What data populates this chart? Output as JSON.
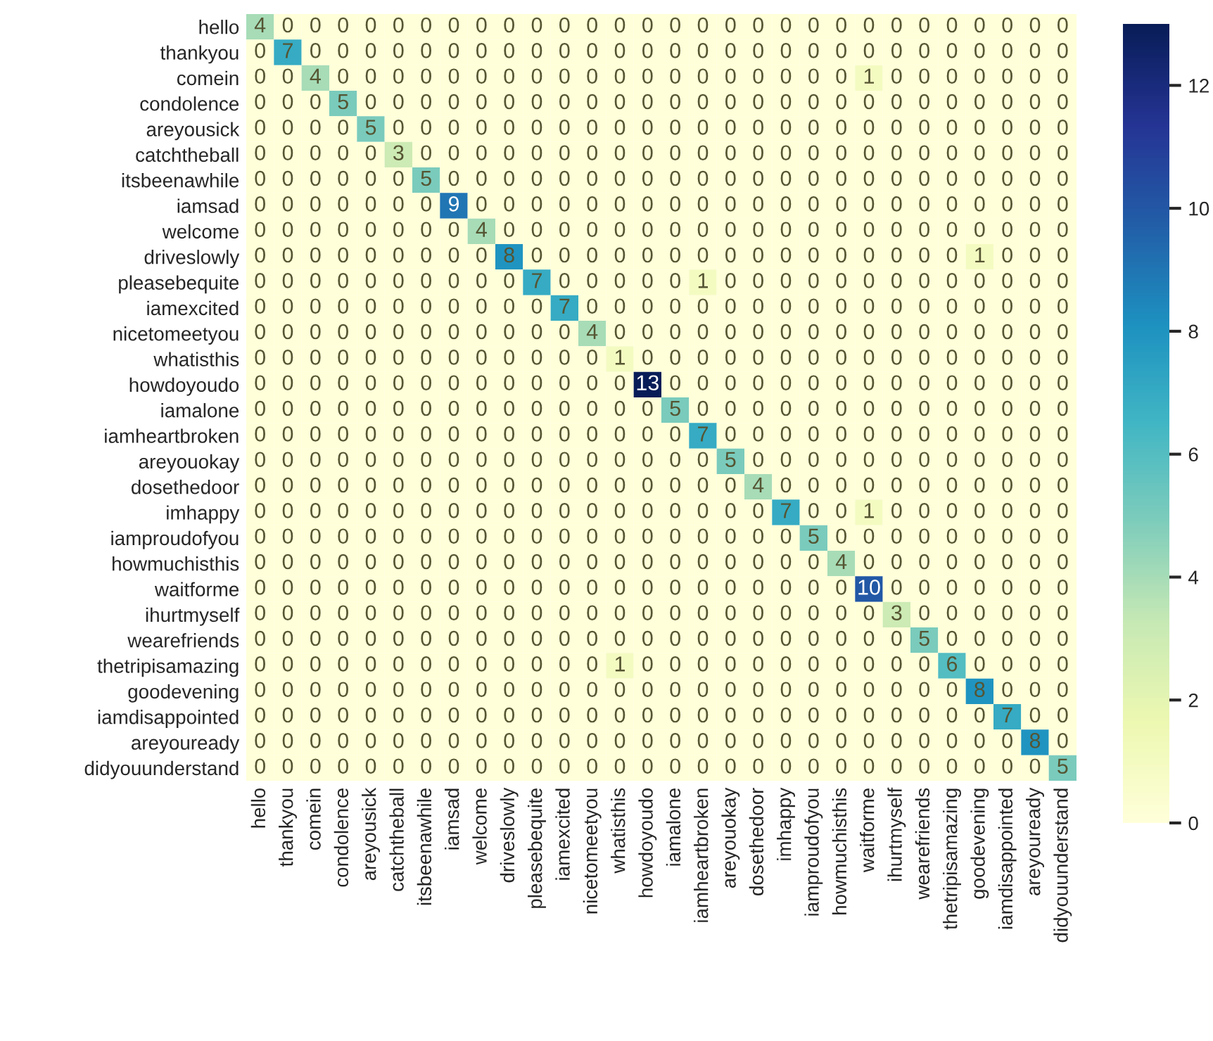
{
  "chart_data": {
    "type": "heatmap",
    "categories": [
      "hello",
      "thankyou",
      "comein",
      "condolence",
      "areyousick",
      "catchtheball",
      "itsbeenawhile",
      "iamsad",
      "welcome",
      "driveslowly",
      "pleasebequite",
      "iamexcited",
      "nicetomeetyou",
      "whatisthis",
      "howdoyoudo",
      "iamalone",
      "iamheartbroken",
      "areyouokay",
      "dosethedoor",
      "imhappy",
      "iamproudofyou",
      "howmuchisthis",
      "waitforme",
      "ihurtmyself",
      "wearefriends",
      "thetripisamazing",
      "goodevening",
      "iamdisappointed",
      "areyouready",
      "didyouunderstand"
    ],
    "y_categories": [
      "hello",
      "thankyou",
      "comein",
      "condolence",
      "areyousick",
      "catchtheball",
      "itsbeenawhile",
      "iamsad",
      "welcome",
      "driveslowly",
      "pleasebequite",
      "iamexcited",
      "nicetomeetyou",
      "whatisthis",
      "howdoyoudo",
      "iamalone",
      "iamheartbroken",
      "areyouokay",
      "dosethedoor",
      "imhappy",
      "iamproudofyou",
      "howmuchisthis",
      "waitforme",
      "ihurtmyself",
      "wearefriends",
      "thetripisamazing",
      "goodevening",
      "iamdisappointed",
      "areyouready",
      "didyouunderstand"
    ],
    "cells": [
      [
        4,
        0,
        0,
        0,
        0,
        0,
        0,
        0,
        0,
        0,
        0,
        0,
        0,
        0,
        0,
        0,
        0,
        0,
        0,
        0,
        0,
        0,
        0,
        0,
        0,
        0,
        0,
        0,
        0,
        0
      ],
      [
        0,
        7,
        0,
        0,
        0,
        0,
        0,
        0,
        0,
        0,
        0,
        0,
        0,
        0,
        0,
        0,
        0,
        0,
        0,
        0,
        0,
        0,
        0,
        0,
        0,
        0,
        0,
        0,
        0,
        0
      ],
      [
        0,
        0,
        4,
        0,
        0,
        0,
        0,
        0,
        0,
        0,
        0,
        0,
        0,
        0,
        0,
        0,
        0,
        0,
        0,
        0,
        0,
        0,
        1,
        0,
        0,
        0,
        0,
        0,
        0,
        0
      ],
      [
        0,
        0,
        0,
        5,
        0,
        0,
        0,
        0,
        0,
        0,
        0,
        0,
        0,
        0,
        0,
        0,
        0,
        0,
        0,
        0,
        0,
        0,
        0,
        0,
        0,
        0,
        0,
        0,
        0,
        0
      ],
      [
        0,
        0,
        0,
        0,
        5,
        0,
        0,
        0,
        0,
        0,
        0,
        0,
        0,
        0,
        0,
        0,
        0,
        0,
        0,
        0,
        0,
        0,
        0,
        0,
        0,
        0,
        0,
        0,
        0,
        0
      ],
      [
        0,
        0,
        0,
        0,
        0,
        3,
        0,
        0,
        0,
        0,
        0,
        0,
        0,
        0,
        0,
        0,
        0,
        0,
        0,
        0,
        0,
        0,
        0,
        0,
        0,
        0,
        0,
        0,
        0,
        0
      ],
      [
        0,
        0,
        0,
        0,
        0,
        0,
        5,
        0,
        0,
        0,
        0,
        0,
        0,
        0,
        0,
        0,
        0,
        0,
        0,
        0,
        0,
        0,
        0,
        0,
        0,
        0,
        0,
        0,
        0,
        0
      ],
      [
        0,
        0,
        0,
        0,
        0,
        0,
        0,
        9,
        0,
        0,
        0,
        0,
        0,
        0,
        0,
        0,
        0,
        0,
        0,
        0,
        0,
        0,
        0,
        0,
        0,
        0,
        0,
        0,
        0,
        0
      ],
      [
        0,
        0,
        0,
        0,
        0,
        0,
        0,
        0,
        4,
        0,
        0,
        0,
        0,
        0,
        0,
        0,
        0,
        0,
        0,
        0,
        0,
        0,
        0,
        0,
        0,
        0,
        0,
        0,
        0,
        0
      ],
      [
        0,
        0,
        0,
        0,
        0,
        0,
        0,
        0,
        0,
        8,
        0,
        0,
        0,
        0,
        0,
        0,
        0,
        0,
        0,
        0,
        0,
        0,
        0,
        0,
        0,
        0,
        1,
        0,
        0,
        0
      ],
      [
        0,
        0,
        0,
        0,
        0,
        0,
        0,
        0,
        0,
        0,
        7,
        0,
        0,
        0,
        0,
        0,
        1,
        0,
        0,
        0,
        0,
        0,
        0,
        0,
        0,
        0,
        0,
        0,
        0,
        0
      ],
      [
        0,
        0,
        0,
        0,
        0,
        0,
        0,
        0,
        0,
        0,
        0,
        7,
        0,
        0,
        0,
        0,
        0,
        0,
        0,
        0,
        0,
        0,
        0,
        0,
        0,
        0,
        0,
        0,
        0,
        0
      ],
      [
        0,
        0,
        0,
        0,
        0,
        0,
        0,
        0,
        0,
        0,
        0,
        0,
        4,
        0,
        0,
        0,
        0,
        0,
        0,
        0,
        0,
        0,
        0,
        0,
        0,
        0,
        0,
        0,
        0,
        0
      ],
      [
        0,
        0,
        0,
        0,
        0,
        0,
        0,
        0,
        0,
        0,
        0,
        0,
        0,
        1,
        0,
        0,
        0,
        0,
        0,
        0,
        0,
        0,
        0,
        0,
        0,
        0,
        0,
        0,
        0,
        0
      ],
      [
        0,
        0,
        0,
        0,
        0,
        0,
        0,
        0,
        0,
        0,
        0,
        0,
        0,
        0,
        13,
        0,
        0,
        0,
        0,
        0,
        0,
        0,
        0,
        0,
        0,
        0,
        0,
        0,
        0,
        0
      ],
      [
        0,
        0,
        0,
        0,
        0,
        0,
        0,
        0,
        0,
        0,
        0,
        0,
        0,
        0,
        0,
        5,
        0,
        0,
        0,
        0,
        0,
        0,
        0,
        0,
        0,
        0,
        0,
        0,
        0,
        0
      ],
      [
        0,
        0,
        0,
        0,
        0,
        0,
        0,
        0,
        0,
        0,
        0,
        0,
        0,
        0,
        0,
        0,
        7,
        0,
        0,
        0,
        0,
        0,
        0,
        0,
        0,
        0,
        0,
        0,
        0,
        0
      ],
      [
        0,
        0,
        0,
        0,
        0,
        0,
        0,
        0,
        0,
        0,
        0,
        0,
        0,
        0,
        0,
        0,
        0,
        5,
        0,
        0,
        0,
        0,
        0,
        0,
        0,
        0,
        0,
        0,
        0,
        0
      ],
      [
        0,
        0,
        0,
        0,
        0,
        0,
        0,
        0,
        0,
        0,
        0,
        0,
        0,
        0,
        0,
        0,
        0,
        0,
        4,
        0,
        0,
        0,
        0,
        0,
        0,
        0,
        0,
        0,
        0,
        0
      ],
      [
        0,
        0,
        0,
        0,
        0,
        0,
        0,
        0,
        0,
        0,
        0,
        0,
        0,
        0,
        0,
        0,
        0,
        0,
        0,
        7,
        0,
        0,
        1,
        0,
        0,
        0,
        0,
        0,
        0,
        0
      ],
      [
        0,
        0,
        0,
        0,
        0,
        0,
        0,
        0,
        0,
        0,
        0,
        0,
        0,
        0,
        0,
        0,
        0,
        0,
        0,
        0,
        5,
        0,
        0,
        0,
        0,
        0,
        0,
        0,
        0,
        0
      ],
      [
        0,
        0,
        0,
        0,
        0,
        0,
        0,
        0,
        0,
        0,
        0,
        0,
        0,
        0,
        0,
        0,
        0,
        0,
        0,
        0,
        0,
        4,
        0,
        0,
        0,
        0,
        0,
        0,
        0,
        0
      ],
      [
        0,
        0,
        0,
        0,
        0,
        0,
        0,
        0,
        0,
        0,
        0,
        0,
        0,
        0,
        0,
        0,
        0,
        0,
        0,
        0,
        0,
        0,
        10,
        0,
        0,
        0,
        0,
        0,
        0,
        0
      ],
      [
        0,
        0,
        0,
        0,
        0,
        0,
        0,
        0,
        0,
        0,
        0,
        0,
        0,
        0,
        0,
        0,
        0,
        0,
        0,
        0,
        0,
        0,
        0,
        3,
        0,
        0,
        0,
        0,
        0,
        0
      ],
      [
        0,
        0,
        0,
        0,
        0,
        0,
        0,
        0,
        0,
        0,
        0,
        0,
        0,
        0,
        0,
        0,
        0,
        0,
        0,
        0,
        0,
        0,
        0,
        0,
        5,
        0,
        0,
        0,
        0,
        0
      ],
      [
        0,
        0,
        0,
        0,
        0,
        0,
        0,
        0,
        0,
        0,
        0,
        0,
        0,
        1,
        0,
        0,
        0,
        0,
        0,
        0,
        0,
        0,
        0,
        0,
        0,
        6,
        0,
        0,
        0,
        0
      ],
      [
        0,
        0,
        0,
        0,
        0,
        0,
        0,
        0,
        0,
        0,
        0,
        0,
        0,
        0,
        0,
        0,
        0,
        0,
        0,
        0,
        0,
        0,
        0,
        0,
        0,
        0,
        8,
        0,
        0,
        0
      ],
      [
        0,
        0,
        0,
        0,
        0,
        0,
        0,
        0,
        0,
        0,
        0,
        0,
        0,
        0,
        0,
        0,
        0,
        0,
        0,
        0,
        0,
        0,
        0,
        0,
        0,
        0,
        0,
        7,
        0,
        0
      ],
      [
        0,
        0,
        0,
        0,
        0,
        0,
        0,
        0,
        0,
        0,
        0,
        0,
        0,
        0,
        0,
        0,
        0,
        0,
        0,
        0,
        0,
        0,
        0,
        0,
        0,
        0,
        0,
        0,
        8,
        0
      ],
      [
        0,
        0,
        0,
        0,
        0,
        0,
        0,
        0,
        0,
        0,
        0,
        0,
        0,
        0,
        0,
        0,
        0,
        0,
        0,
        0,
        0,
        0,
        0,
        0,
        0,
        0,
        0,
        0,
        0,
        5
      ]
    ],
    "clim": [
      0,
      13
    ],
    "cticks": [
      0,
      2,
      4,
      6,
      8,
      10,
      12
    ],
    "data_labels": true
  }
}
